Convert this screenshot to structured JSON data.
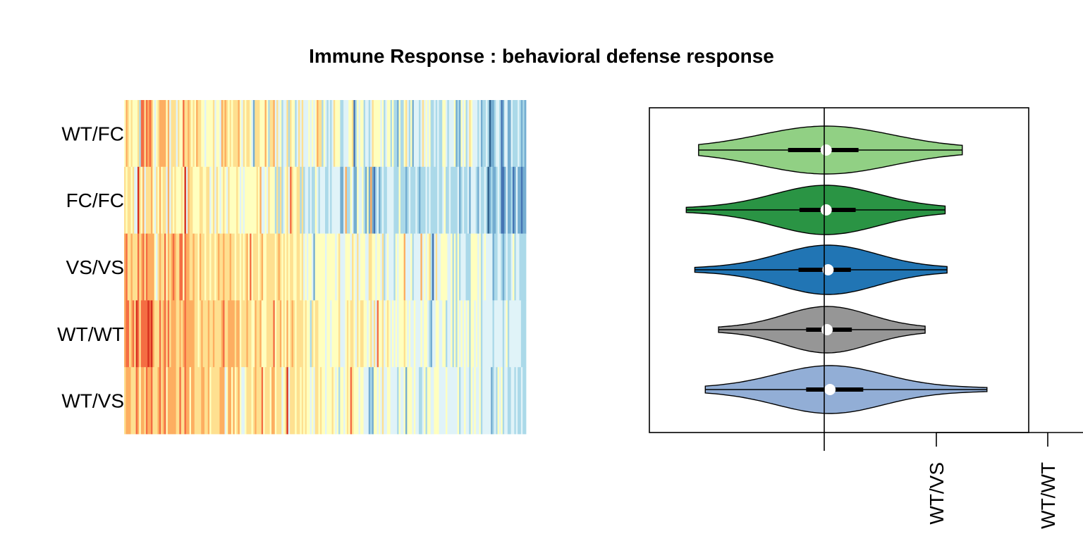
{
  "chart_data": [
    {
      "type": "heatmap",
      "title": "Immune Response : behavioral defense response",
      "rows": [
        "WT/FC",
        "FC/FC",
        "VS/VS",
        "WT/WT",
        "WT/VS"
      ],
      "columns_count": 240,
      "palette": [
        "#D7301F",
        "#F46D43",
        "#FDAE61",
        "#FEE090",
        "#FFFFBF",
        "#E0F3F8",
        "#ABD9E9",
        "#74ADD1",
        "#4575B4",
        "#2C5F8A"
      ],
      "trend": "warm (orange/red) columns on the left, cool (blue) columns on the right"
    },
    {
      "type": "violin",
      "groups": [
        {
          "name": "WT/FC",
          "color": "#91D084",
          "min": -1.32,
          "q1": -0.38,
          "median": 0.02,
          "q3": 0.36,
          "max": 1.45
        },
        {
          "name": "FC/FC",
          "color": "#2A9444",
          "min": -1.45,
          "q1": -0.26,
          "median": 0.02,
          "q3": 0.33,
          "max": 1.27
        },
        {
          "name": "VS/VS",
          "color": "#2175B4",
          "min": -1.36,
          "q1": -0.27,
          "median": 0.04,
          "q3": 0.28,
          "max": 1.29
        },
        {
          "name": "WT/WT",
          "color": "#969696",
          "min": -1.11,
          "q1": -0.19,
          "median": 0.03,
          "q3": 0.29,
          "max": 1.06
        },
        {
          "name": "WT/VS",
          "color": "#92AED6",
          "min": -1.25,
          "q1": -0.19,
          "median": 0.06,
          "q3": 0.41,
          "max": 1.71
        }
      ],
      "reference_line": 0,
      "x_tick_labels": [
        "WT/VS",
        "WT/WT"
      ]
    }
  ]
}
